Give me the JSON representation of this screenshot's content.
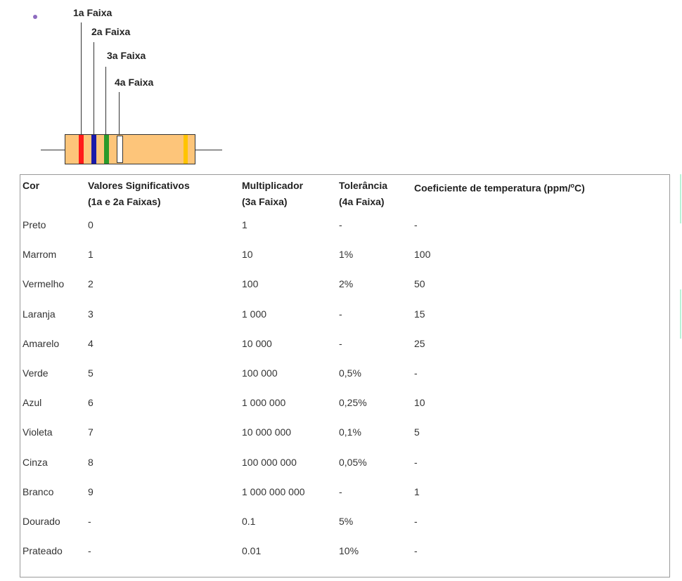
{
  "diagram": {
    "band_labels": [
      "1a Faixa",
      "2a Faixa",
      "3a Faixa",
      "4a Faixa"
    ],
    "colors": {
      "body": "#fdc57a",
      "band1": "#ff1a1a",
      "band2": "#1a1aaa",
      "band3": "#2a9a2a",
      "band4": "#ffffff",
      "end_band": "#ffc400"
    }
  },
  "table": {
    "headers": {
      "cor": "Cor",
      "valores": "Valores Significativos",
      "valores_sub": "(1a e 2a Faixas)",
      "multiplicador": "Multiplicador",
      "multiplicador_sub": "(3a Faixa)",
      "tolerancia": "Tolerância",
      "tolerancia_sub": "(4a Faixa)",
      "coeficiente_main": "Coeficiente de temperatura (ppm/",
      "coeficiente_sup": "o",
      "coeficiente_end": "C)"
    },
    "rows": [
      [
        "Preto",
        "0",
        "1",
        "-",
        "-"
      ],
      [
        "Marrom",
        "1",
        "10",
        "1%",
        "100"
      ],
      [
        "Vermelho",
        "2",
        "100",
        "2%",
        "50"
      ],
      [
        "Laranja",
        "3",
        "1 000",
        "-",
        "15"
      ],
      [
        "Amarelo",
        "4",
        "10 000",
        "-",
        "25"
      ],
      [
        "Verde",
        "5",
        "100 000",
        "0,5%",
        "-"
      ],
      [
        "Azul",
        "6",
        "1 000 000",
        "0,25%",
        "10"
      ],
      [
        "Violeta",
        "7",
        "10 000 000",
        "0,1%",
        "5"
      ],
      [
        "Cinza",
        "8",
        "100 000 000",
        "0,05%",
        "-"
      ],
      [
        "Branco",
        "9",
        "1 000 000 000",
        "-",
        "1"
      ],
      [
        "Dourado",
        "-",
        "0.1",
        "5%",
        "-"
      ],
      [
        "Prateado",
        "-",
        "0.01",
        "10%",
        "-"
      ]
    ]
  }
}
